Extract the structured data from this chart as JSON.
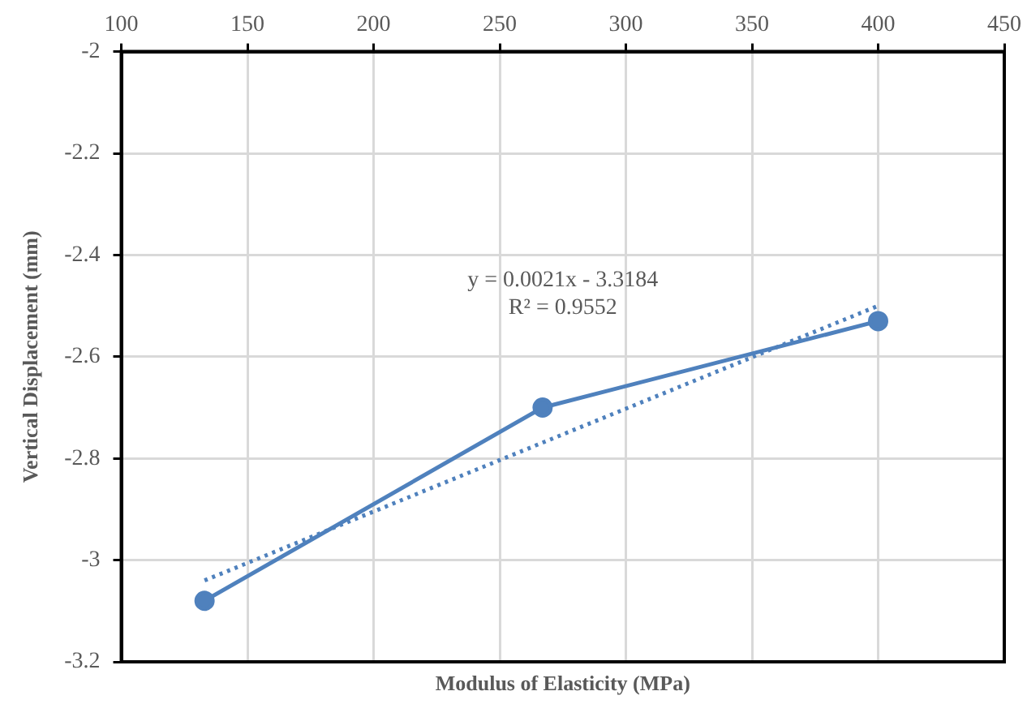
{
  "chart_data": {
    "type": "line",
    "xlabel": "Modulus of Elasticity (MPa)",
    "ylabel": "Vertical Displacement (mm)",
    "annotations": [
      "y = 0.0021x - 3.3184",
      "R² = 0.9552"
    ],
    "series": [
      {
        "color": "#4f81bd",
        "x": [
          133,
          267,
          400
        ],
        "values": [
          -3.08,
          -2.7,
          -2.53
        ],
        "marker": "circle",
        "line_style": "solid"
      },
      {
        "color": "#4f81bd",
        "x": [
          133,
          400
        ],
        "values": [
          -3.04,
          -2.5
        ],
        "marker": "none",
        "line_style": "dotted"
      }
    ],
    "xlim": [
      100,
      450
    ],
    "xticks": [
      100,
      150,
      200,
      250,
      300,
      350,
      400,
      450
    ],
    "ylim": [
      -3.2,
      -2
    ],
    "yticks": [
      -3.2,
      -3,
      -2.8,
      -2.6,
      -2.4,
      -2.2,
      -2
    ],
    "grid": true,
    "legend": false
  }
}
